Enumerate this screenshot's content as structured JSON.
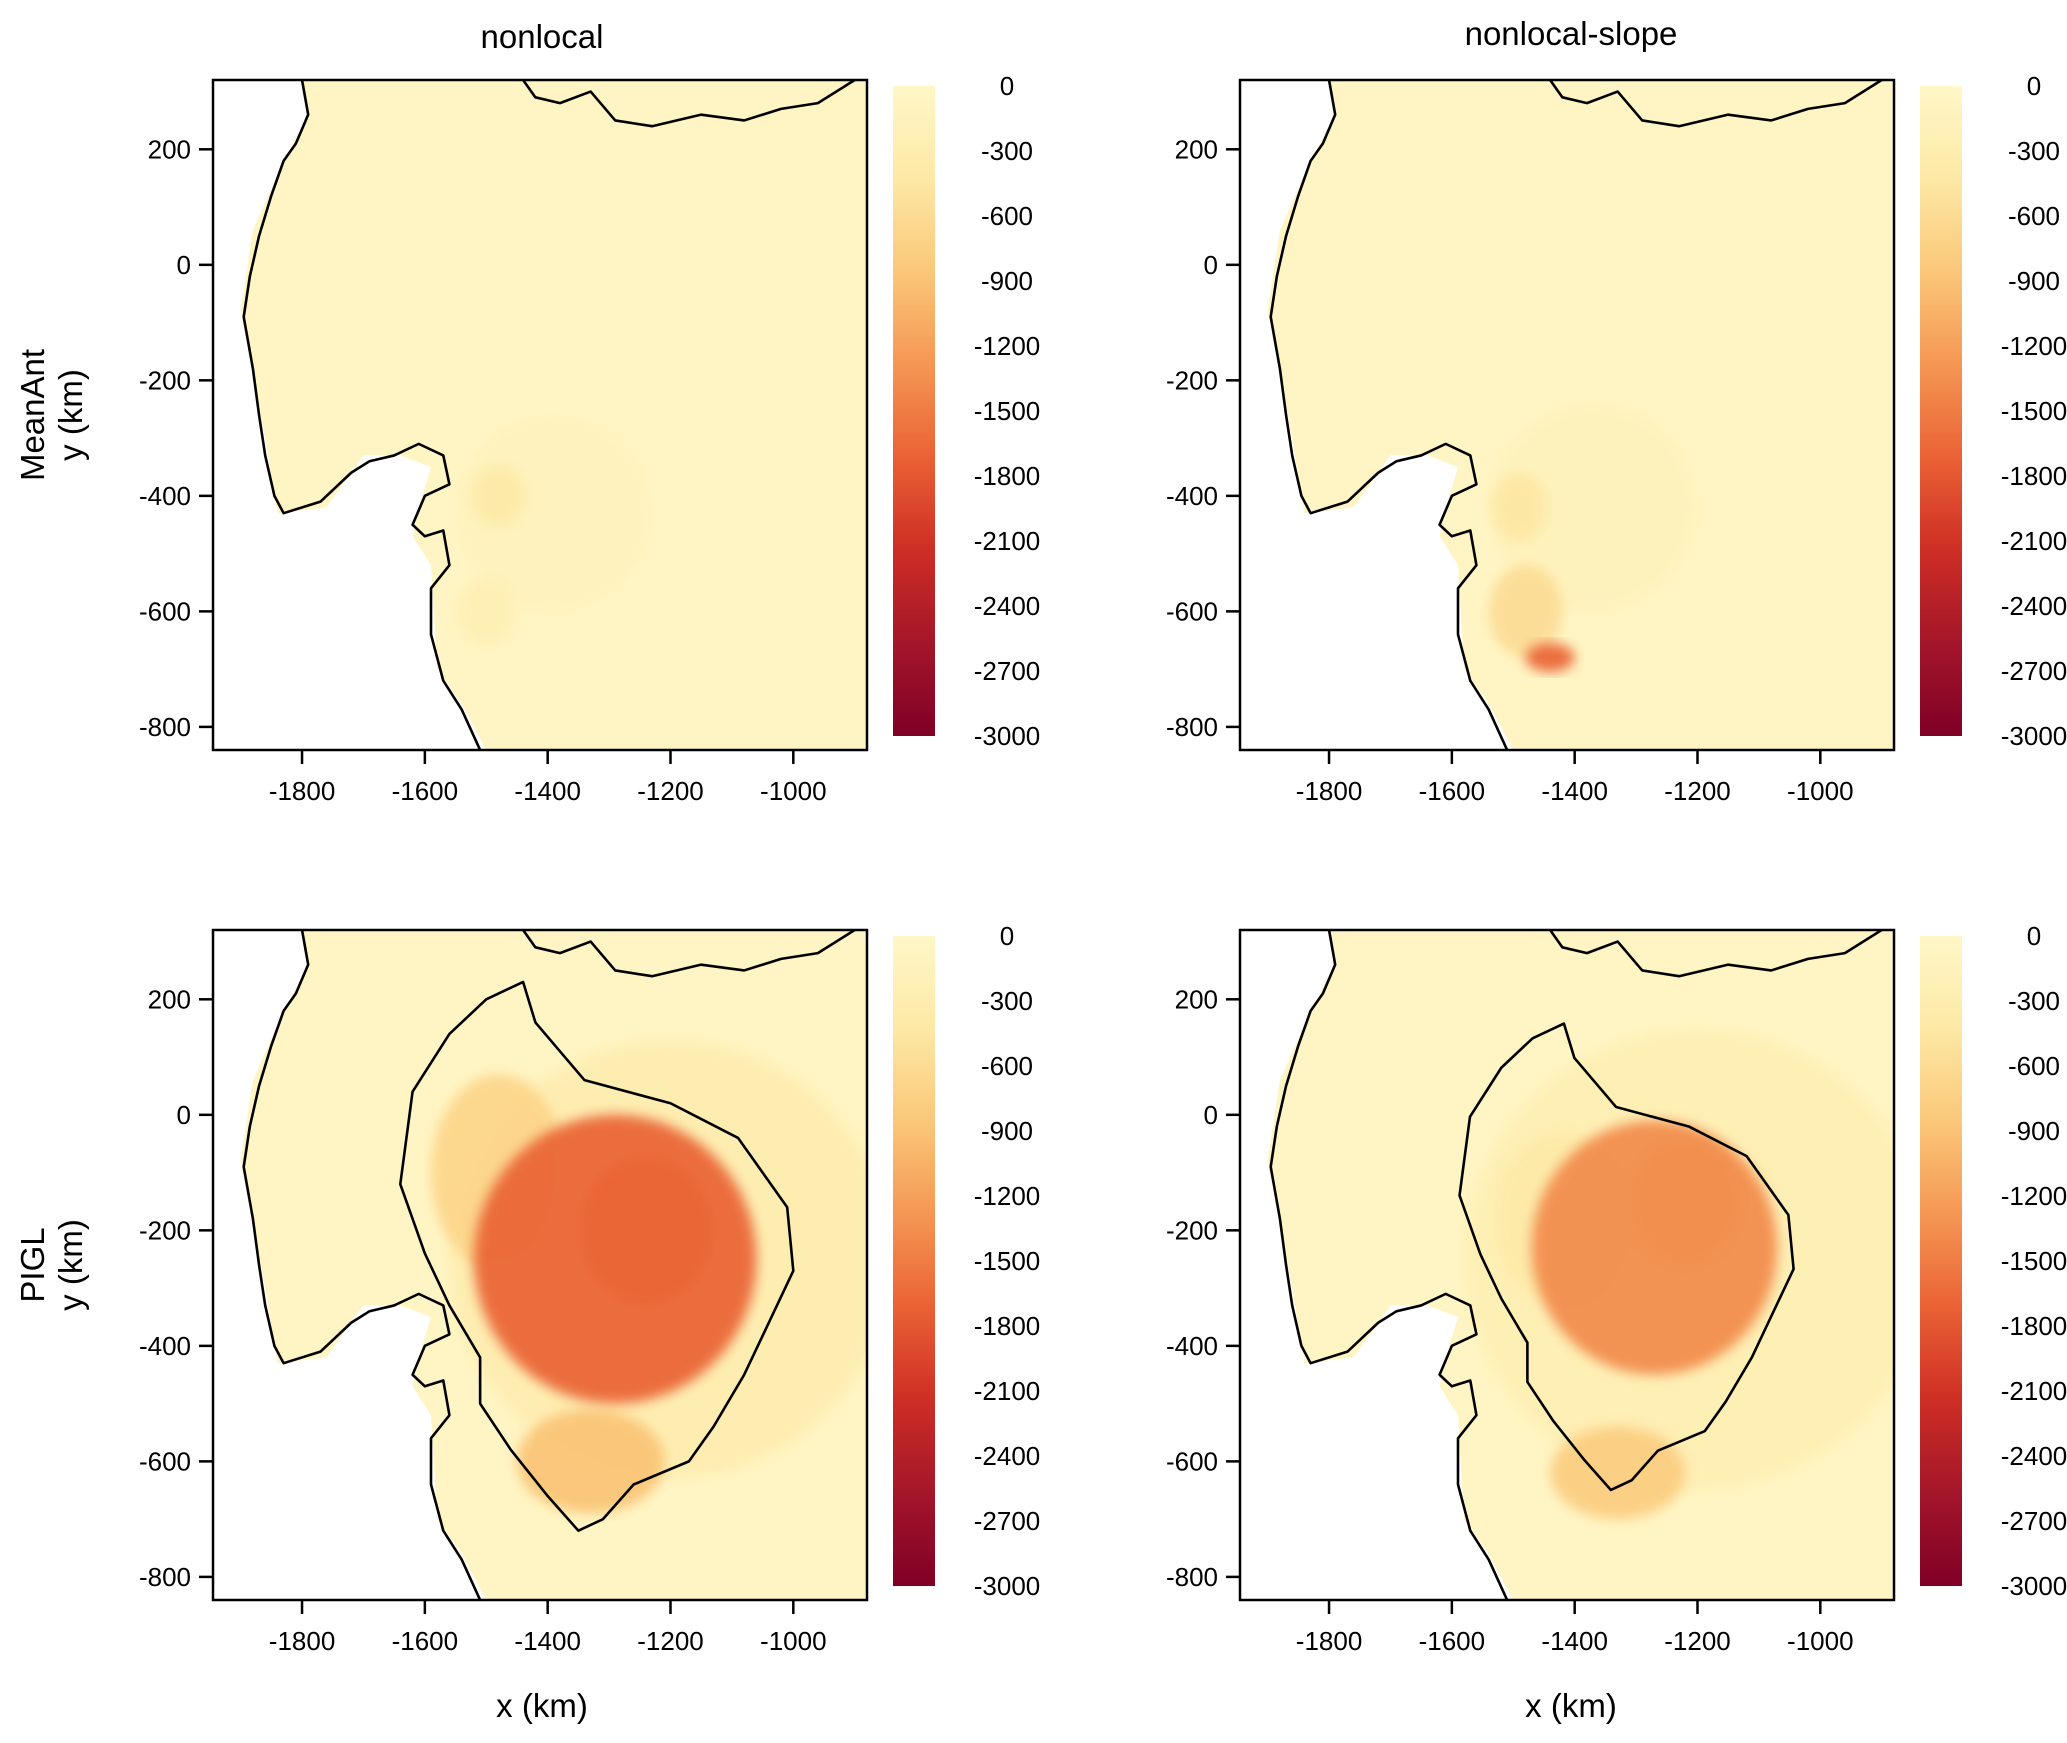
{
  "chart_data": {
    "type": "heatmap",
    "columns": [
      "nonlocal",
      "nonlocal-slope"
    ],
    "rows": [
      "MeanAnt",
      "PIGL"
    ],
    "xlabel": "x (km)",
    "ylabel": "y (km)",
    "xlim": [
      -1945,
      -880
    ],
    "ylim": [
      -840,
      320
    ],
    "xticks": [
      -1800,
      -1600,
      -1400,
      -1200,
      -1000
    ],
    "xtick_labels": [
      "-1800",
      "-1600",
      "-1400",
      "-1200",
      "-1000"
    ],
    "yticks": [
      200,
      0,
      -200,
      -400,
      -600,
      -800
    ],
    "ytick_labels": [
      "200",
      "0",
      "-200",
      "-400",
      "-600",
      "-800"
    ],
    "colorbar": {
      "min": -3000,
      "max": 0,
      "ticks": [
        0,
        -300,
        -600,
        -900,
        -1200,
        -1500,
        -1800,
        -2100,
        -2400,
        -2700,
        -3000
      ],
      "tick_labels": [
        "0",
        "-300",
        "-600",
        "-900",
        "-1200",
        "-1500",
        "-1800",
        "-2100",
        "-2400",
        "-2700",
        "-3000"
      ],
      "colors": [
        "#fff7c8",
        "#fde9a6",
        "#fbc97a",
        "#f59a55",
        "#ea6235",
        "#cf2f25",
        "#a3152a",
        "#800026"
      ]
    },
    "panels": [
      {
        "row": "MeanAnt",
        "column": "nonlocal",
        "background_value": -50,
        "features": [
          {
            "x": -1480,
            "y": -400,
            "sx": 45,
            "sy": 55,
            "value": -400
          },
          {
            "x": -1390,
            "y": -430,
            "sx": 160,
            "sy": 170,
            "value": -130
          },
          {
            "x": -1500,
            "y": -600,
            "sx": 50,
            "sy": 60,
            "value": -250
          }
        ]
      },
      {
        "row": "MeanAnt",
        "column": "nonlocal-slope",
        "background_value": -50,
        "features": [
          {
            "x": -1440,
            "y": -680,
            "sx": 40,
            "sy": 25,
            "value": -1700
          },
          {
            "x": -1480,
            "y": -600,
            "sx": 60,
            "sy": 80,
            "value": -600
          },
          {
            "x": -1490,
            "y": -420,
            "sx": 45,
            "sy": 60,
            "value": -450
          },
          {
            "x": -1370,
            "y": -420,
            "sx": 170,
            "sy": 180,
            "value": -150
          }
        ]
      },
      {
        "row": "PIGL",
        "column": "nonlocal",
        "background_value": -50,
        "features": [
          {
            "x": -1290,
            "y": -250,
            "sx": 230,
            "sy": 250,
            "value": -1700
          },
          {
            "x": -1240,
            "y": -200,
            "sx": 110,
            "sy": 130,
            "value": -1400
          },
          {
            "x": -1480,
            "y": -100,
            "sx": 110,
            "sy": 170,
            "value": -700
          },
          {
            "x": -1330,
            "y": -600,
            "sx": 120,
            "sy": 90,
            "value": -900
          },
          {
            "x": -1200,
            "y": -250,
            "sx": 360,
            "sy": 380,
            "value": -300
          }
        ]
      },
      {
        "row": "PIGL",
        "column": "nonlocal-slope",
        "background_value": -50,
        "features": [
          {
            "x": -1270,
            "y": -230,
            "sx": 200,
            "sy": 220,
            "value": -1400
          },
          {
            "x": -1220,
            "y": -150,
            "sx": 90,
            "sy": 110,
            "value": -900
          },
          {
            "x": -1420,
            "y": -180,
            "sx": 110,
            "sy": 150,
            "value": -400
          },
          {
            "x": -1330,
            "y": -620,
            "sx": 110,
            "sy": 80,
            "value": -800
          },
          {
            "x": -1200,
            "y": -250,
            "sx": 380,
            "sy": 400,
            "value": -250
          }
        ]
      }
    ]
  }
}
